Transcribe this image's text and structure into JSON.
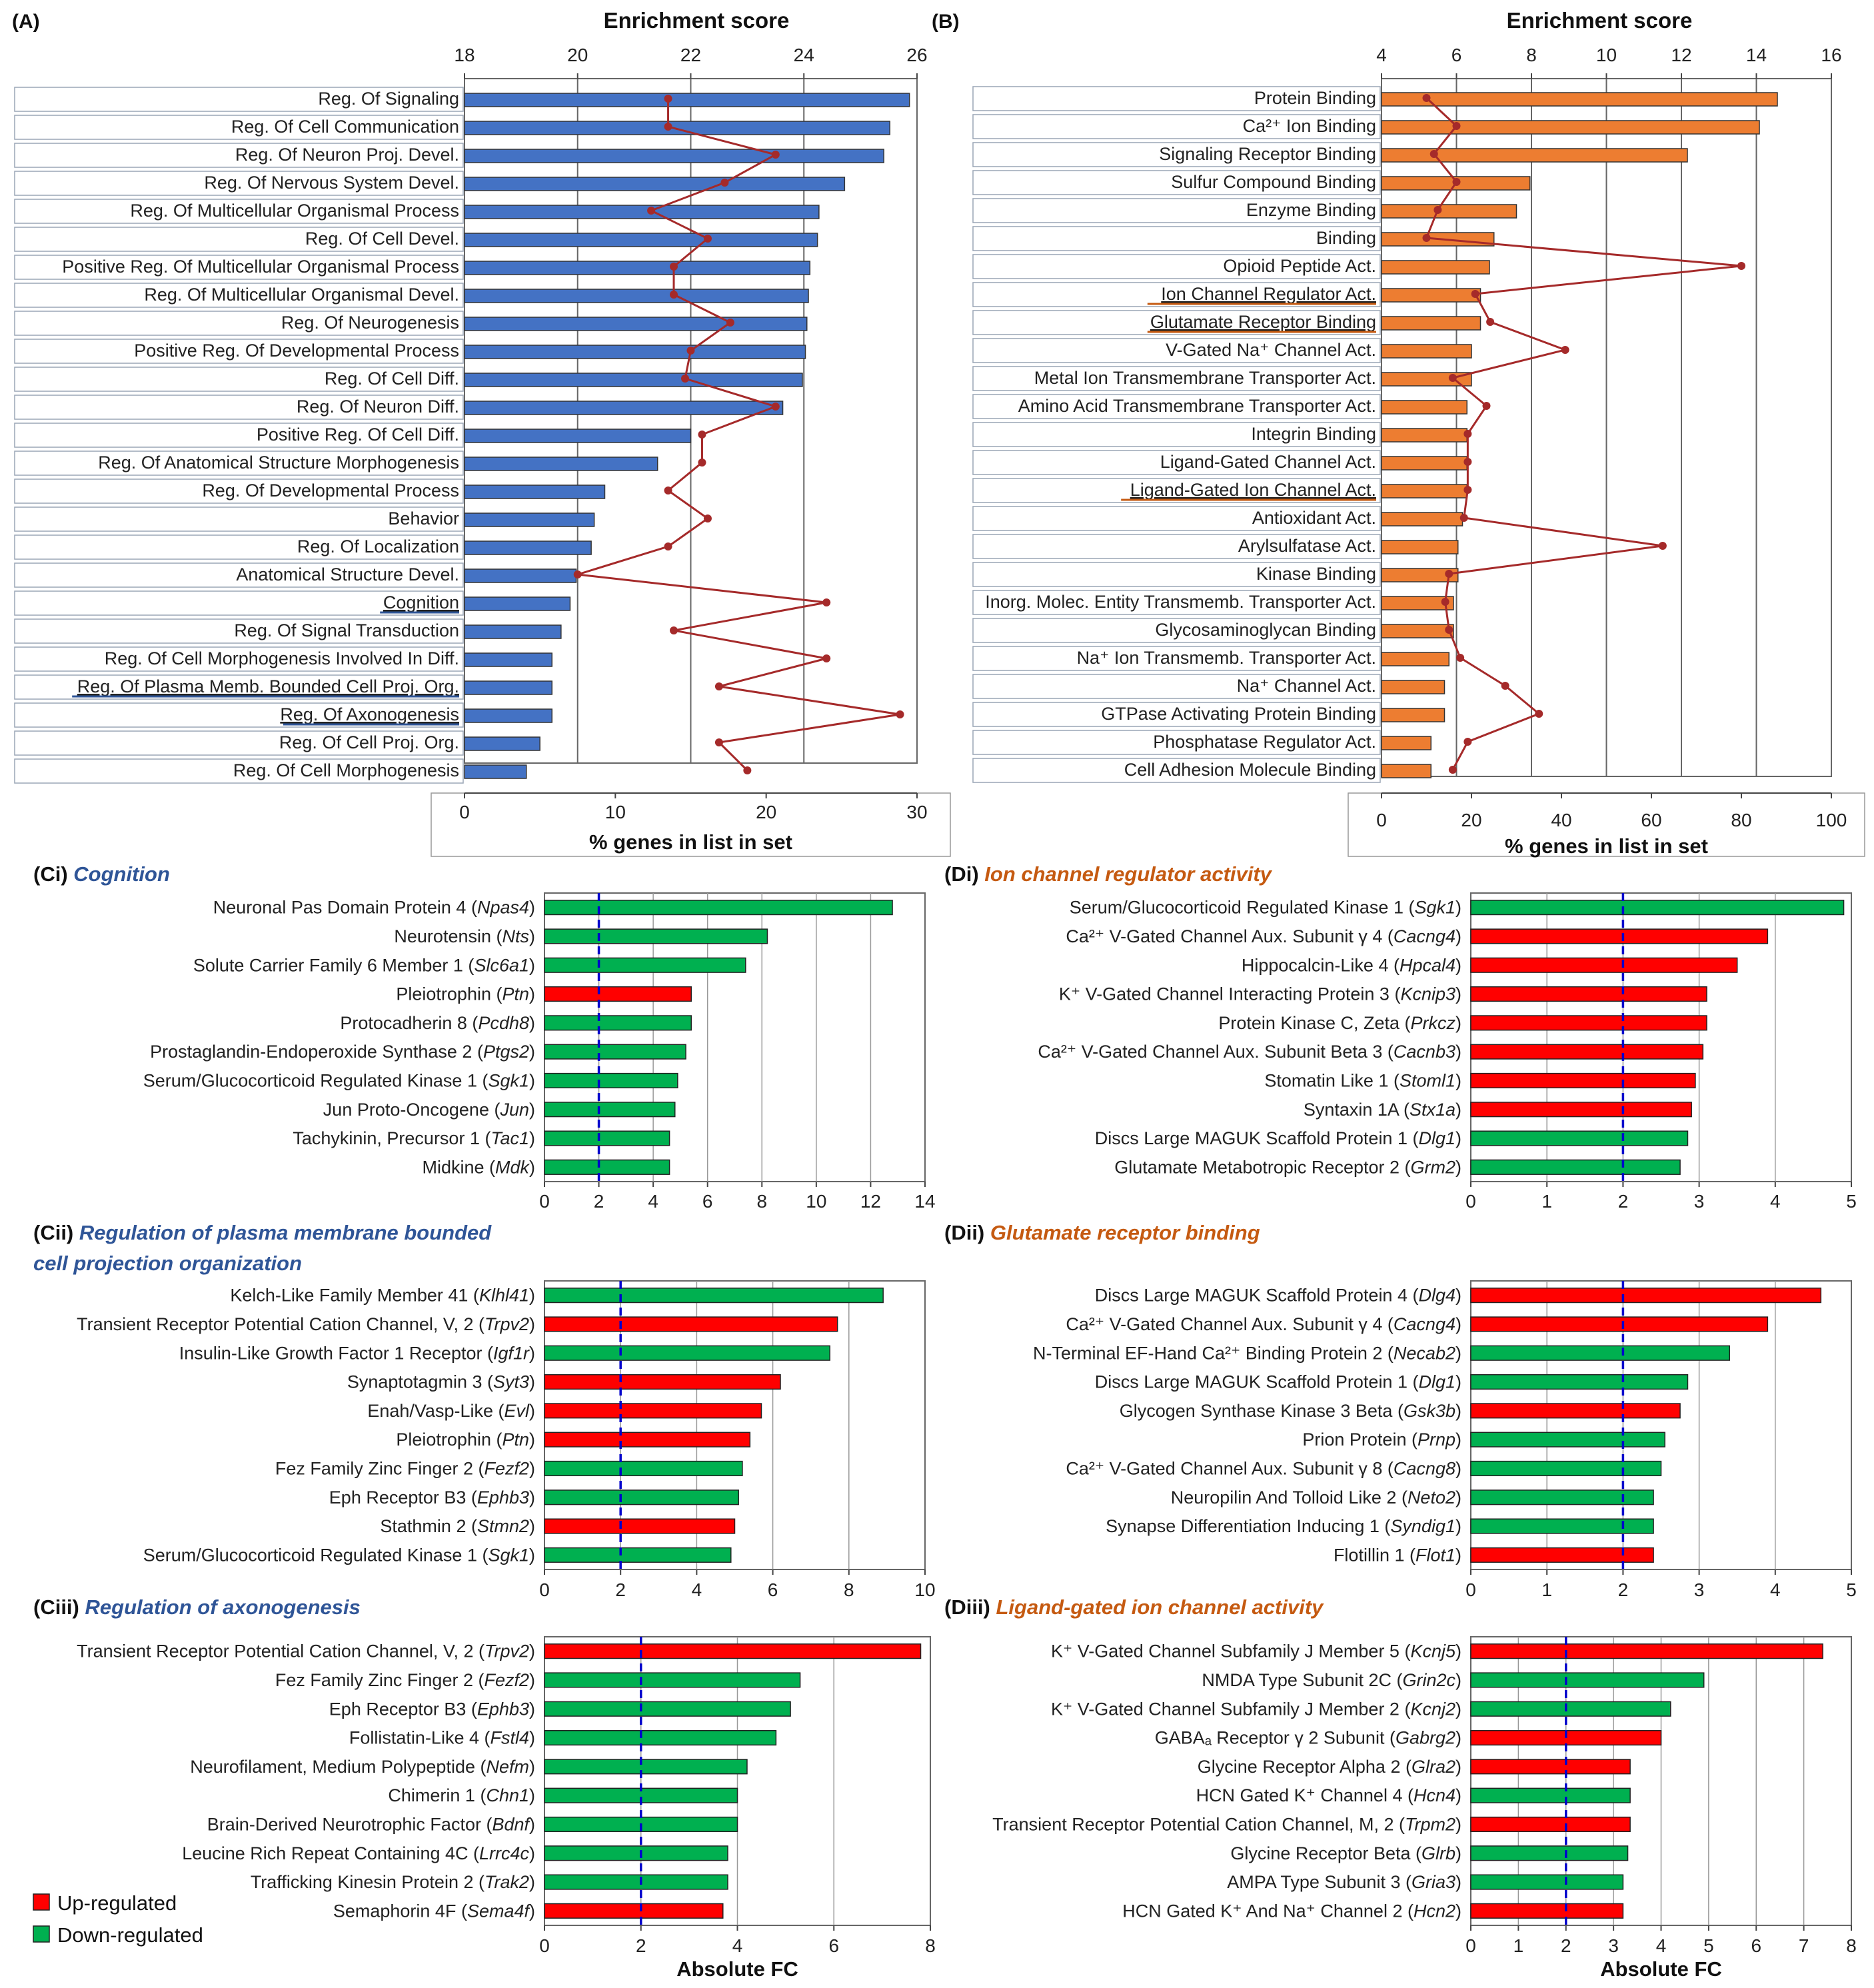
{
  "colors": {
    "blue_bar": "#4472C4",
    "orange_bar": "#ED7D31",
    "enrich_line": "#A52A2A",
    "up": "#FF0000",
    "down": "#00B050",
    "title_blue": "#2F5597",
    "title_orange": "#C55A11",
    "threshold": "#0000CC"
  },
  "legend": {
    "up": "Up-regulated",
    "down": "Down-regulated"
  },
  "chart_data": [
    {
      "id": "A",
      "panel_label": "(A)",
      "type": "bar",
      "title": "",
      "top_axis_label": "Enrichment score",
      "top_ticks": [
        18,
        20,
        22,
        24,
        26
      ],
      "top_range": [
        18,
        26
      ],
      "xlabel": "% genes in list in set",
      "x_ticks": [
        0,
        10,
        20,
        30
      ],
      "xlim": [
        0,
        30
      ],
      "categories": [
        "Reg. Of Signaling",
        "Reg. Of Cell Communication",
        "Reg. Of Neuron Proj. Devel.",
        "Reg. Of Nervous System Devel.",
        "Reg. Of Multicellular Organismal Process",
        "Reg. Of Cell Devel.",
        "Positive Reg. Of Multicellular Organismal Process",
        "Reg. Of Multicellular Organismal Devel.",
        "Reg. Of Neurogenesis",
        "Positive Reg. Of Developmental Process",
        "Reg. Of Cell Diff.",
        "Reg. Of Neuron Diff.",
        "Positive Reg. Of Cell Diff.",
        "Reg. Of Anatomical Structure Morphogenesis",
        "Reg. Of Developmental Process",
        "Behavior",
        "Reg. Of Localization",
        "Anatomical Structure Devel.",
        "Cognition",
        "Reg. Of Signal Transduction",
        "Reg. Of Cell Morphogenesis Involved In Diff.",
        "Reg. Of Plasma Memb. Bounded Cell Proj. Org.",
        "Reg. Of Axonogenesis",
        "Reg. Of Cell Proj. Org.",
        "Reg. Of Cell Morphogenesis"
      ],
      "underlined": [
        "Cognition",
        "Reg. Of Plasma Memb. Bounded Cell Proj. Org.",
        "Reg. Of Axonogenesis"
      ],
      "series": [
        {
          "name": "% genes in list in set",
          "values": [
            29.5,
            28.2,
            27.8,
            25.2,
            23.5,
            23.4,
            22.9,
            22.8,
            22.7,
            22.6,
            22.4,
            21.1,
            15.0,
            12.8,
            9.3,
            8.6,
            8.4,
            7.4,
            7.0,
            6.4,
            5.8,
            5.8,
            5.8,
            5.0,
            4.1
          ]
        },
        {
          "name": "Enrichment score",
          "values": [
            21.6,
            21.6,
            23.5,
            22.6,
            21.3,
            22.3,
            21.7,
            21.7,
            22.7,
            22.0,
            21.9,
            23.5,
            22.2,
            22.2,
            21.6,
            22.3,
            21.6,
            20.0,
            24.4,
            21.7,
            24.4,
            22.5,
            25.7,
            22.5,
            23.0
          ]
        }
      ]
    },
    {
      "id": "B",
      "panel_label": "(B)",
      "type": "bar",
      "title": "",
      "top_axis_label": "Enrichment score",
      "top_ticks": [
        4,
        6,
        8,
        10,
        12,
        14,
        16
      ],
      "top_range": [
        4,
        16
      ],
      "xlabel": "% genes in list in set",
      "x_ticks": [
        0,
        20,
        40,
        60,
        80,
        100
      ],
      "xlim": [
        0,
        100
      ],
      "categories": [
        "Protein Binding",
        "Ca²⁺ Ion Binding",
        "Signaling Receptor Binding",
        "Sulfur Compound Binding",
        "Enzyme Binding",
        "Binding",
        "Opioid Peptide Act.",
        "Ion Channel Regulator Act.",
        "Glutamate Receptor Binding",
        "V-Gated Na⁺ Channel Act.",
        "Metal Ion Transmembrane Transporter Act.",
        "Amino Acid Transmembrane Transporter Act.",
        "Integrin Binding",
        "Ligand-Gated Channel Act.",
        "Ligand-Gated Ion Channel Act.",
        "Antioxidant Act.",
        "Arylsulfatase Act.",
        "Kinase Binding",
        "Inorg. Molec. Entity Transmemb. Transporter Act.",
        "Glycosaminoglycan Binding",
        "Na⁺ Ion Transmemb. Transporter Act.",
        "Na⁺ Channel Act.",
        "GTPase Activating Protein Binding",
        "Phosphatase Regulator Act.",
        "Cell Adhesion Molecule Binding"
      ],
      "underlined": [
        "Ion Channel Regulator Act.",
        "Glutamate Receptor Binding",
        "Ligand-Gated Ion Channel Act."
      ],
      "series": [
        {
          "name": "% genes in list in set",
          "values": [
            88,
            84,
            68,
            33,
            30,
            25,
            24,
            22,
            22,
            20,
            20,
            19,
            19,
            19,
            19,
            18,
            17,
            17,
            16,
            16,
            15,
            14,
            14,
            11,
            11
          ]
        },
        {
          "name": "Enrichment score",
          "values": [
            5.2,
            6.0,
            5.4,
            6.0,
            5.5,
            5.2,
            13.6,
            6.5,
            6.9,
            8.9,
            5.9,
            6.8,
            6.3,
            6.3,
            6.3,
            6.2,
            11.5,
            5.8,
            5.7,
            5.8,
            6.1,
            7.3,
            8.2,
            6.3,
            5.9
          ]
        }
      ]
    },
    {
      "id": "Ci",
      "panel_label": "(Ci)",
      "type": "bar",
      "title": "Cognition",
      "xlabel": "",
      "x_ticks": [
        0,
        2,
        4,
        6,
        8,
        10,
        12,
        14
      ],
      "xlim": [
        0,
        14
      ],
      "threshold": 2,
      "categories": [
        {
          "name": "Neuronal Pas Domain Protein 4",
          "gene": "Npas4"
        },
        {
          "name": "Neurotensin",
          "gene": "Nts"
        },
        {
          "name": "Solute Carrier Family 6 Member 1",
          "gene": "Slc6a1"
        },
        {
          "name": "Pleiotrophin",
          "gene": "Ptn"
        },
        {
          "name": "Protocadherin 8",
          "gene": "Pcdh8"
        },
        {
          "name": "Prostaglandin-Endoperoxide Synthase 2",
          "gene": "Ptgs2"
        },
        {
          "name": "Serum/Glucocorticoid Regulated Kinase 1",
          "gene": "Sgk1"
        },
        {
          "name": "Jun Proto-Oncogene",
          "gene": "Jun"
        },
        {
          "name": "Tachykinin, Precursor 1",
          "gene": "Tac1"
        },
        {
          "name": "Midkine",
          "gene": "Mdk"
        }
      ],
      "values": [
        12.8,
        8.2,
        7.4,
        5.4,
        5.4,
        5.2,
        4.9,
        4.8,
        4.6,
        4.6
      ],
      "regulation": [
        "down",
        "down",
        "down",
        "up",
        "down",
        "down",
        "down",
        "down",
        "down",
        "down"
      ]
    },
    {
      "id": "Cii",
      "panel_label": "(Cii)",
      "type": "bar",
      "title": "Regulation of plasma membrane bounded cell projection organization",
      "title_lines": [
        "Regulation of plasma membrane bounded",
        "cell projection organization"
      ],
      "xlabel": "",
      "x_ticks": [
        0,
        2,
        4,
        6,
        8,
        10
      ],
      "xlim": [
        0,
        10
      ],
      "threshold": 2,
      "categories": [
        {
          "name": "Kelch-Like Family Member 41",
          "gene": "Klhl41"
        },
        {
          "name": "Transient Receptor Potential Cation Channel, V, 2",
          "gene": "Trpv2"
        },
        {
          "name": "Insulin-Like Growth Factor 1 Receptor",
          "gene": "Igf1r"
        },
        {
          "name": "Synaptotagmin 3",
          "gene": "Syt3"
        },
        {
          "name": "Enah/Vasp-Like",
          "gene": "Evl"
        },
        {
          "name": "Pleiotrophin",
          "gene": "Ptn"
        },
        {
          "name": "Fez Family Zinc Finger 2",
          "gene": "Fezf2"
        },
        {
          "name": "Eph Receptor B3",
          "gene": "Ephb3"
        },
        {
          "name": "Stathmin 2",
          "gene": "Stmn2"
        },
        {
          "name": "Serum/Glucocorticoid Regulated Kinase 1",
          "gene": "Sgk1"
        }
      ],
      "values": [
        8.9,
        7.7,
        7.5,
        6.2,
        5.7,
        5.4,
        5.2,
        5.1,
        5.0,
        4.9
      ],
      "regulation": [
        "down",
        "up",
        "down",
        "up",
        "up",
        "up",
        "down",
        "down",
        "up",
        "down"
      ]
    },
    {
      "id": "Ciii",
      "panel_label": "(Ciii)",
      "type": "bar",
      "title": "Regulation of axonogenesis",
      "xlabel": "Absolute FC",
      "x_ticks": [
        0,
        2,
        4,
        6,
        8
      ],
      "xlim": [
        0,
        8
      ],
      "threshold": 2,
      "categories": [
        {
          "name": "Transient Receptor Potential Cation Channel, V, 2",
          "gene": "Trpv2"
        },
        {
          "name": "Fez Family Zinc Finger 2",
          "gene": "Fezf2"
        },
        {
          "name": "Eph Receptor B3",
          "gene": "Ephb3"
        },
        {
          "name": "Follistatin-Like 4",
          "gene": "Fstl4"
        },
        {
          "name": "Neurofilament, Medium Polypeptide",
          "gene": "Nefm"
        },
        {
          "name": "Chimerin 1",
          "gene": "Chn1"
        },
        {
          "name": "Brain-Derived Neurotrophic Factor",
          "gene": "Bdnf"
        },
        {
          "name": "Leucine Rich Repeat Containing 4C",
          "gene": "Lrrc4c"
        },
        {
          "name": "Trafficking Kinesin Protein 2",
          "gene": "Trak2"
        },
        {
          "name": "Semaphorin 4F",
          "gene": "Sema4f"
        }
      ],
      "values": [
        7.8,
        5.3,
        5.1,
        4.8,
        4.2,
        4.0,
        4.0,
        3.8,
        3.8,
        3.7
      ],
      "regulation": [
        "up",
        "down",
        "down",
        "down",
        "down",
        "down",
        "down",
        "down",
        "down",
        "up"
      ]
    },
    {
      "id": "Di",
      "panel_label": "(Di)",
      "type": "bar",
      "title": "Ion channel regulator activity",
      "xlabel": "",
      "x_ticks": [
        0,
        1,
        2,
        3,
        4,
        5
      ],
      "xlim": [
        0,
        5
      ],
      "threshold": 2,
      "categories": [
        {
          "name": "Serum/Glucocorticoid Regulated Kinase 1",
          "gene": "Sgk1"
        },
        {
          "name": "Ca²⁺ V-Gated Channel Aux. Subunit γ 4",
          "gene": "Cacng4"
        },
        {
          "name": "Hippocalcin-Like 4",
          "gene": "Hpcal4"
        },
        {
          "name": "K⁺ V-Gated Channel Interacting Protein 3",
          "gene": "Kcnip3"
        },
        {
          "name": "Protein Kinase C, Zeta",
          "gene": "Prkcz"
        },
        {
          "name": "Ca²⁺ V-Gated Channel Aux. Subunit Beta 3",
          "gene": "Cacnb3"
        },
        {
          "name": "Stomatin Like 1",
          "gene": "Stoml1"
        },
        {
          "name": "Syntaxin 1A",
          "gene": "Stx1a"
        },
        {
          "name": "Discs Large MAGUK Scaffold Protein 1",
          "gene": "Dlg1"
        },
        {
          "name": "Glutamate Metabotropic Receptor 2",
          "gene": "Grm2"
        }
      ],
      "values": [
        4.9,
        3.9,
        3.5,
        3.1,
        3.1,
        3.05,
        2.95,
        2.9,
        2.85,
        2.75
      ],
      "regulation": [
        "down",
        "up",
        "up",
        "up",
        "up",
        "up",
        "up",
        "up",
        "down",
        "down"
      ]
    },
    {
      "id": "Dii",
      "panel_label": "(Dii)",
      "type": "bar",
      "title": "Glutamate receptor binding",
      "xlabel": "",
      "x_ticks": [
        0,
        1,
        2,
        3,
        4,
        5
      ],
      "xlim": [
        0,
        5
      ],
      "threshold": 2,
      "categories": [
        {
          "name": "Discs Large MAGUK Scaffold Protein 4",
          "gene": "Dlg4"
        },
        {
          "name": "Ca²⁺ V-Gated Channel Aux. Subunit γ 4",
          "gene": "Cacng4"
        },
        {
          "name": "N-Terminal EF-Hand Ca²⁺ Binding Protein 2",
          "gene": "Necab2"
        },
        {
          "name": "Discs Large MAGUK Scaffold Protein 1",
          "gene": "Dlg1"
        },
        {
          "name": "Glycogen Synthase Kinase 3 Beta",
          "gene": "Gsk3b"
        },
        {
          "name": "Prion Protein",
          "gene": "Prnp"
        },
        {
          "name": "Ca²⁺ V-Gated Channel Aux. Subunit γ 8",
          "gene": "Cacng8"
        },
        {
          "name": "Neuropilin And Tolloid Like 2",
          "gene": "Neto2"
        },
        {
          "name": "Synapse Differentiation Inducing 1",
          "gene": "Syndig1"
        },
        {
          "name": "Flotillin 1",
          "gene": "Flot1"
        }
      ],
      "values": [
        4.6,
        3.9,
        3.4,
        2.85,
        2.75,
        2.55,
        2.5,
        2.4,
        2.4,
        2.4
      ],
      "regulation": [
        "up",
        "up",
        "down",
        "down",
        "up",
        "down",
        "down",
        "down",
        "down",
        "up"
      ]
    },
    {
      "id": "Diii",
      "panel_label": "(Diii)",
      "type": "bar",
      "title": "Ligand-gated ion channel activity",
      "xlabel": "Absolute FC",
      "x_ticks": [
        0,
        1,
        2,
        3,
        4,
        5,
        6,
        7,
        8
      ],
      "xlim": [
        0,
        8
      ],
      "threshold": 2,
      "categories": [
        {
          "name": "K⁺ V-Gated Channel Subfamily J Member 5",
          "gene": "Kcnj5"
        },
        {
          "name": "NMDA Type Subunit 2C",
          "gene": "Grin2c"
        },
        {
          "name": "K⁺ V-Gated Channel Subfamily J Member 2",
          "gene": "Kcnj2"
        },
        {
          "name": "GABAₐ Receptor γ 2 Subunit",
          "gene": "Gabrg2"
        },
        {
          "name": "Glycine Receptor Alpha 2",
          "gene": "Glra2"
        },
        {
          "name": "HCN Gated K⁺ Channel 4",
          "gene": "Hcn4"
        },
        {
          "name": "Transient Receptor Potential Cation Channel, M, 2",
          "gene": "Trpm2"
        },
        {
          "name": "Glycine Receptor Beta",
          "gene": "Glrb"
        },
        {
          "name": "AMPA Type Subunit 3",
          "gene": "Gria3"
        },
        {
          "name": "HCN Gated K⁺ And Na⁺ Channel 2",
          "gene": "Hcn2"
        }
      ],
      "values": [
        7.4,
        4.9,
        4.2,
        4.0,
        3.35,
        3.35,
        3.35,
        3.3,
        3.2,
        3.2
      ],
      "regulation": [
        "up",
        "down",
        "down",
        "up",
        "up",
        "down",
        "up",
        "down",
        "down",
        "up"
      ]
    }
  ]
}
